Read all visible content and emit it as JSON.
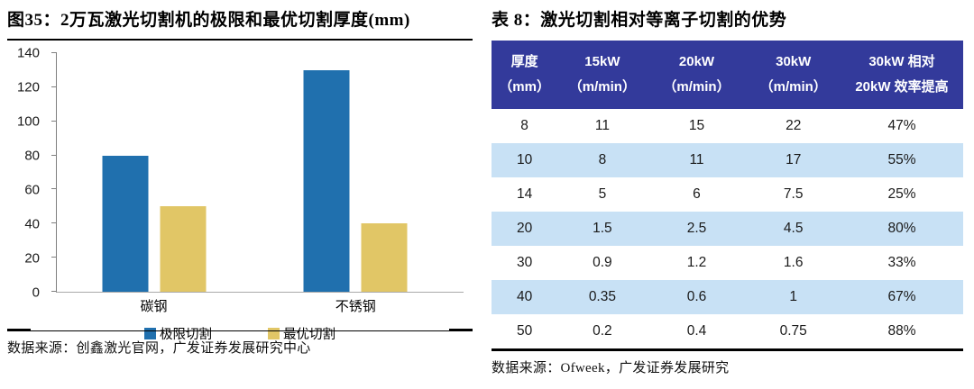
{
  "left_panel": {
    "title": "图35：2万瓦激光切割机的极限和最优切割厚度(mm)",
    "source": "数据来源：创鑫激光官网，广发证券发展研究中心",
    "chart_data": {
      "type": "bar",
      "title": "2万瓦激光切割机的极限和最优切割厚度(mm)",
      "categories": [
        "碳钢",
        "不锈钢"
      ],
      "series": [
        {
          "name": "极限切割",
          "color": "#2070AE",
          "values": [
            80,
            130
          ]
        },
        {
          "name": "最优切割",
          "color": "#E1C666",
          "values": [
            50,
            40
          ]
        }
      ],
      "xlabel": "",
      "ylabel": "",
      "ylim": [
        0,
        140
      ],
      "yticks": [
        0,
        20,
        40,
        60,
        80,
        100,
        120,
        140
      ],
      "grid": false,
      "legend_position": "bottom"
    }
  },
  "right_panel": {
    "title": "表 8：激光切割相对等离子切割的优势",
    "source": "数据来源：Ofweek，广发证券发展研究",
    "table": {
      "header_bg": "#333A9B",
      "row_alt_bg": "#C8E1F5",
      "columns": [
        {
          "line1": "厚度",
          "line2": "（mm）"
        },
        {
          "line1": "15kW",
          "line2": "（m/min）"
        },
        {
          "line1": "20kW",
          "line2": "（m/min）"
        },
        {
          "line1": "30kW",
          "line2": "（m/min）"
        },
        {
          "line1": "30kW 相对",
          "line2": "20kW 效率提高"
        }
      ],
      "col_widths": [
        "14%",
        "19%",
        "21%",
        "20%",
        "26%"
      ],
      "rows": [
        [
          "8",
          "11",
          "15",
          "22",
          "47%"
        ],
        [
          "10",
          "8",
          "11",
          "17",
          "55%"
        ],
        [
          "14",
          "5",
          "6",
          "7.5",
          "25%"
        ],
        [
          "20",
          "1.5",
          "2.5",
          "4.5",
          "80%"
        ],
        [
          "30",
          "0.9",
          "1.2",
          "1.6",
          "33%"
        ],
        [
          "40",
          "0.35",
          "0.6",
          "1",
          "67%"
        ],
        [
          "50",
          "0.2",
          "0.4",
          "0.75",
          "88%"
        ]
      ]
    }
  },
  "colors": {
    "bar_blue": "#2070AE",
    "bar_yellow": "#E1C666",
    "table_header_bg": "#333A9B",
    "table_row_alt_bg": "#C8E1F5",
    "axis_line": "#7F7F7F",
    "rule_black": "#000000"
  }
}
